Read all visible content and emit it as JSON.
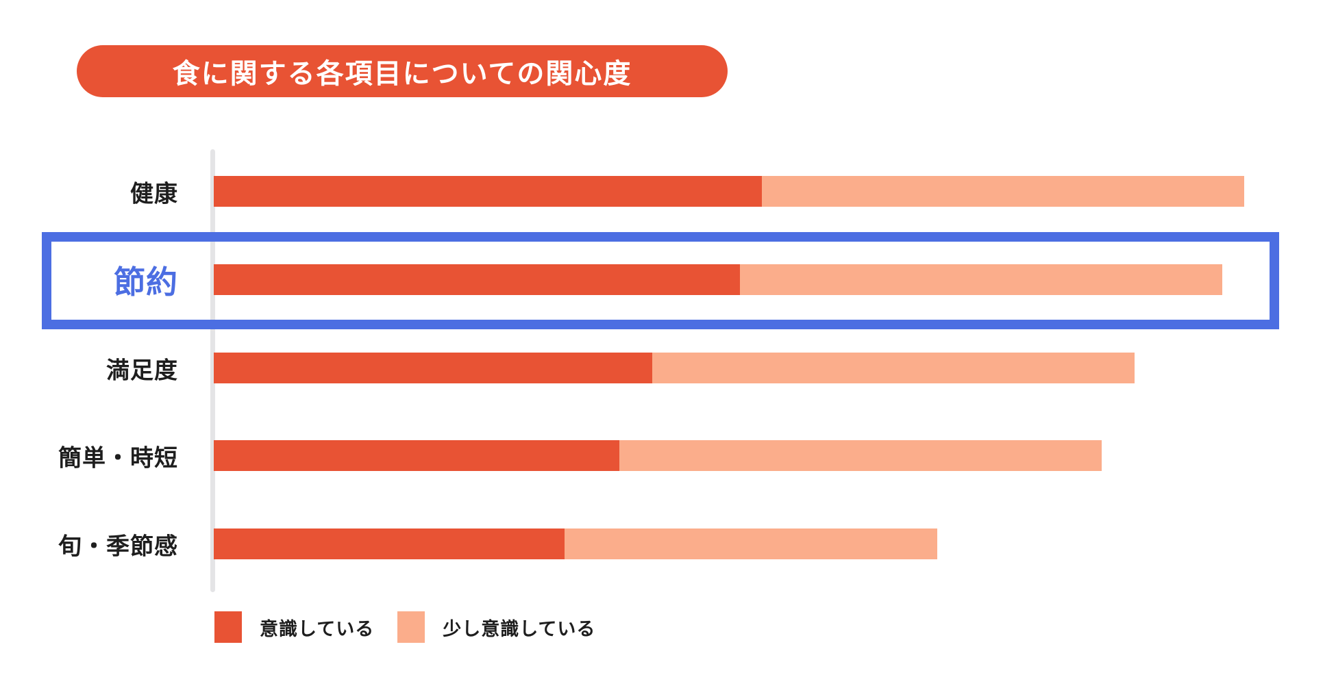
{
  "colors": {
    "background": "#FFFFFF",
    "accent_orange": "#E85334",
    "light_orange": "#FBAD8B",
    "highlight_blue": "#4C6EE2",
    "axis_gray": "#E4E4E6",
    "text_black": "#1E1E1E",
    "title_text": "#FFFFFF"
  },
  "chart_data": {
    "type": "bar",
    "orientation": "horizontal",
    "stacked": true,
    "title": "食に関する各項目についての関心度",
    "categories": [
      "健康",
      "節約",
      "満足度",
      "簡単・時短",
      "旬・季節感"
    ],
    "series": [
      {
        "name": "意識している",
        "color": "#E85334",
        "values": [
          50,
          48,
          40,
          37,
          32
        ]
      },
      {
        "name": "少し意識している",
        "color": "#FBAD8B",
        "values": [
          44,
          44,
          44,
          44,
          34
        ]
      }
    ],
    "value_unit": "percent (estimated from bar lengths; no numeric labels shown in image)",
    "xlim": [
      0,
      100
    ],
    "grid": false,
    "legend_position": "bottom-left",
    "highlighted_category": "節約",
    "highlight_style": "blue outline box around row with enlarged blue category label"
  }
}
